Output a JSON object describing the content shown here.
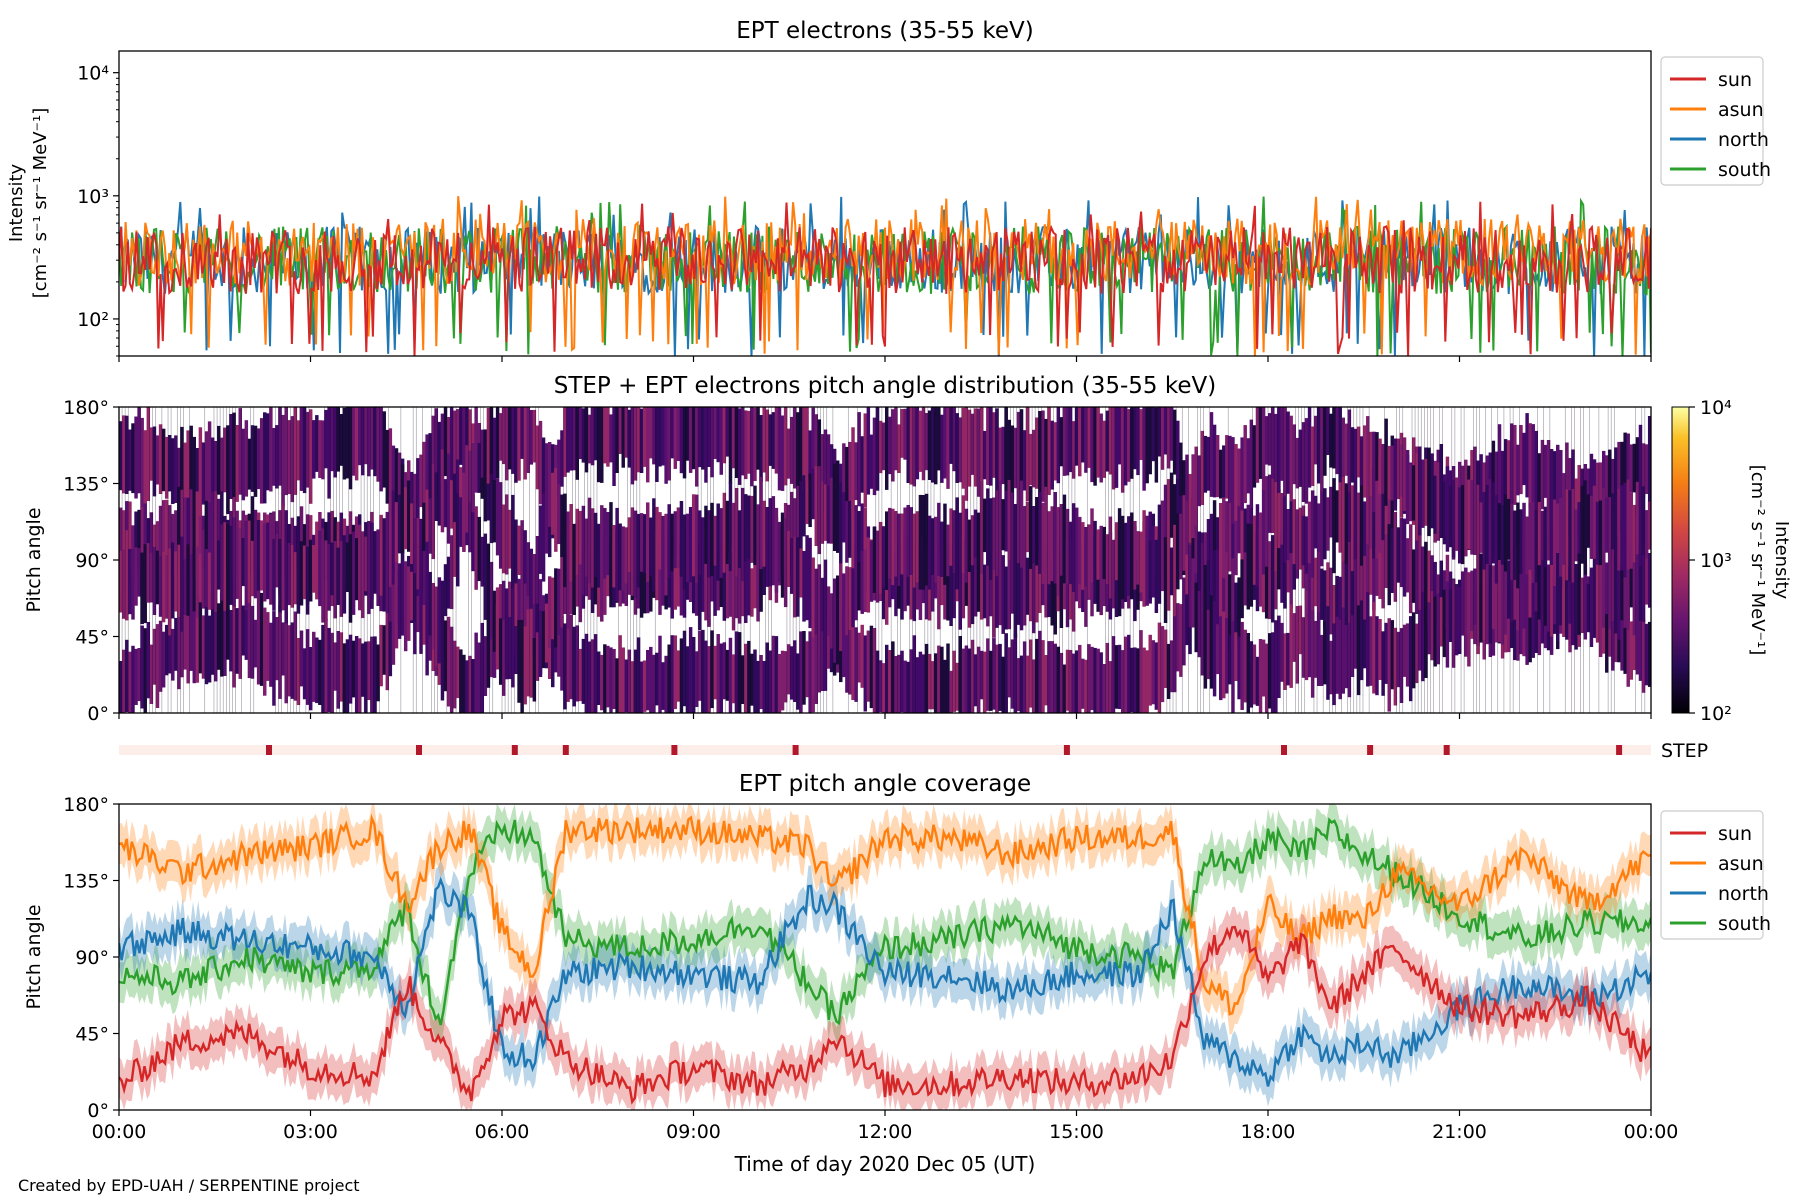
{
  "figure": {
    "credit": "Created by EPD-UAH / SERPENTINE project",
    "xlabel": "Time of day 2020 Dec 05 (UT)",
    "time_ticks": [
      "00:00",
      "03:00",
      "06:00",
      "09:00",
      "12:00",
      "15:00",
      "18:00",
      "21:00",
      "00:00"
    ]
  },
  "colors": {
    "sun": "#d62728",
    "asun": "#ff7f0e",
    "north": "#1f77b4",
    "south": "#2ca02c",
    "step_bar": "#fdeee9",
    "step_tick": "#b2182b"
  },
  "chart_data": [
    {
      "type": "line",
      "title": "EPT electrons (35-55 keV)",
      "ylabel": "Intensity",
      "yunit": "[cm⁻² s⁻¹ sr⁻¹ MeV⁻¹]",
      "yscale": "log",
      "ylim": [
        50,
        15000
      ],
      "yticks": [
        "10²",
        "10³",
        "10⁴"
      ],
      "ytick_values": [
        100,
        1000,
        10000
      ],
      "xlim_hours": [
        0,
        24
      ],
      "legend_position": "outside-right-top",
      "series": [
        {
          "name": "sun",
          "typical": 300,
          "range": [
            60,
            900
          ]
        },
        {
          "name": "asun",
          "typical": 350,
          "range": [
            60,
            1000
          ]
        },
        {
          "name": "north",
          "typical": 300,
          "range": [
            60,
            1000
          ]
        },
        {
          "name": "south",
          "typical": 300,
          "range": [
            60,
            1000
          ]
        }
      ]
    },
    {
      "type": "heatmap",
      "title": "STEP + EPT electrons pitch angle distribution (35-55 keV)",
      "ylabel": "Pitch angle",
      "ylim": [
        0,
        180
      ],
      "yticks": [
        "0°",
        "45°",
        "90°",
        "135°",
        "180°"
      ],
      "xlim_hours": [
        0,
        24
      ],
      "colorbar": {
        "label": "Intensity",
        "unit": "[cm⁻² s⁻¹ sr⁻¹ MeV⁻¹]",
        "scale": "log",
        "range": [
          100,
          10000
        ],
        "ticks": [
          "10²",
          "10³",
          "10⁴"
        ],
        "colormap": "inferno"
      }
    },
    {
      "type": "step_markers",
      "label": "STEP",
      "marker_hours": [
        2.35,
        4.7,
        6.2,
        7.0,
        8.7,
        10.6,
        14.85,
        18.25,
        19.6,
        20.8,
        23.5
      ]
    },
    {
      "type": "line",
      "title": "EPT pitch angle coverage",
      "ylabel": "Pitch angle",
      "ylim": [
        0,
        180
      ],
      "yticks": [
        "0°",
        "45°",
        "90°",
        "135°",
        "180°"
      ],
      "xlim_hours": [
        0,
        24
      ],
      "legend_position": "outside-right-top",
      "band_halfwidth_deg": 12,
      "x_hours": [
        0,
        1,
        2,
        3,
        4,
        4.5,
        5,
        5.5,
        6,
        6.5,
        7,
        8,
        9,
        10,
        10.8,
        11.2,
        12,
        13,
        14,
        15,
        16,
        16.5,
        17,
        17.5,
        18,
        18.5,
        19,
        19.5,
        20,
        21,
        22,
        23,
        24
      ],
      "series": [
        {
          "name": "sun",
          "values": [
            15,
            40,
            45,
            25,
            20,
            75,
            40,
            10,
            55,
            60,
            30,
            12,
            25,
            15,
            25,
            45,
            15,
            15,
            20,
            15,
            20,
            30,
            90,
            110,
            75,
            100,
            60,
            80,
            95,
            60,
            55,
            65,
            30
          ]
        },
        {
          "name": "asun",
          "values": [
            155,
            140,
            150,
            155,
            165,
            120,
            155,
            165,
            105,
            80,
            165,
            165,
            165,
            160,
            155,
            130,
            160,
            160,
            150,
            160,
            160,
            165,
            75,
            60,
            120,
            100,
            115,
            110,
            140,
            120,
            150,
            120,
            150
          ]
        },
        {
          "name": "north",
          "values": [
            95,
            105,
            100,
            95,
            90,
            60,
            130,
            115,
            35,
            30,
            80,
            85,
            80,
            75,
            125,
            120,
            80,
            80,
            70,
            80,
            80,
            120,
            40,
            30,
            20,
            45,
            30,
            40,
            30,
            60,
            75,
            65,
            80
          ]
        },
        {
          "name": "south",
          "values": [
            80,
            75,
            90,
            80,
            85,
            120,
            50,
            140,
            165,
            160,
            100,
            95,
            100,
            110,
            75,
            55,
            95,
            100,
            110,
            95,
            90,
            80,
            150,
            140,
            160,
            150,
            165,
            150,
            140,
            115,
            100,
            110,
            110
          ]
        }
      ]
    }
  ]
}
